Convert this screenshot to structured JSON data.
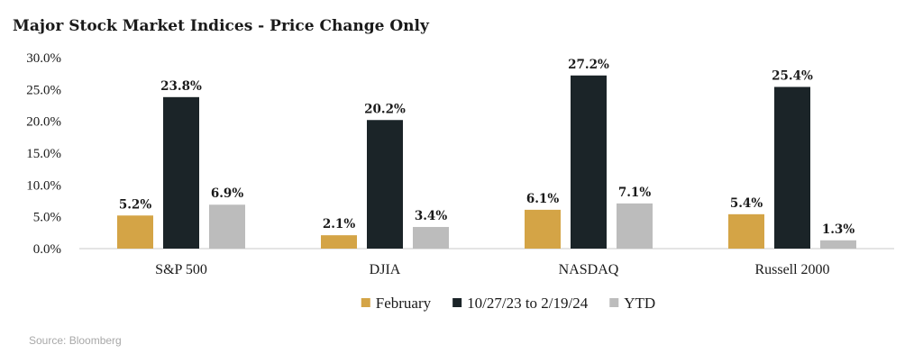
{
  "chart_data": {
    "type": "bar",
    "title": "Major Stock Market Indices - Price Change Only",
    "categories": [
      "S&P 500",
      "DJIA",
      "NASDAQ",
      "Russell 2000"
    ],
    "series": [
      {
        "name": "February",
        "values": [
          5.2,
          2.1,
          6.1,
          5.4
        ],
        "labels": [
          "5.2%",
          "2.1%",
          "6.1%",
          "5.4%"
        ],
        "color": "#d4a446"
      },
      {
        "name": "10/27/23 to 2/19/24",
        "values": [
          23.8,
          20.2,
          27.2,
          25.4
        ],
        "labels": [
          "23.8%",
          "20.2%",
          "27.2%",
          "25.4%"
        ],
        "color": "#1b2428"
      },
      {
        "name": "YTD",
        "values": [
          6.9,
          3.4,
          7.1,
          1.3
        ],
        "labels": [
          "6.9%",
          "3.4%",
          "7.1%",
          "1.3%"
        ],
        "color": "#bcbcbc"
      }
    ],
    "yticks": [
      "30.0%",
      "25.0%",
      "20.0%",
      "15.0%",
      "10.0%",
      "5.0%",
      "0.0%"
    ],
    "ylim": [
      0,
      30
    ],
    "grid": false,
    "legend_position": "bottom",
    "xlabel": "",
    "ylabel": ""
  },
  "source": "Source: Bloomberg"
}
